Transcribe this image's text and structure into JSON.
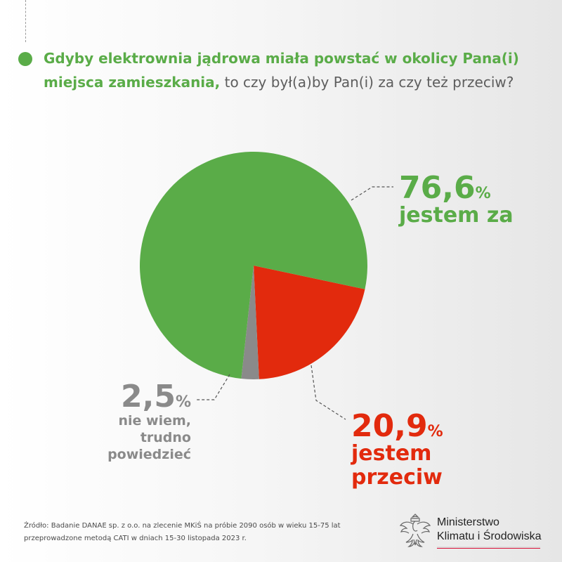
{
  "question": {
    "strong": "Gdyby elektrownia jądrowa miała powstać w okolicy Pana(i) miejsca zamieszkania,",
    "rest": " to czy był(a)by Pan(i) za czy też przeciw?"
  },
  "chart_data": {
    "type": "pie",
    "title": "Gdyby elektrownia jądrowa miała powstać w okolicy Pana(i) miejsca zamieszkania, to czy był(a)by Pan(i) za czy też przeciw?",
    "slices": [
      {
        "label": "jestem przeciw",
        "value": 20.9,
        "display": "20,9",
        "color": "#e22a0d"
      },
      {
        "label": "nie wiem, trudno powiedzieć",
        "value": 2.5,
        "display": "2,5",
        "color": "#8a8a8a"
      },
      {
        "label": "jestem za",
        "value": 76.6,
        "display": "76,6",
        "color": "#5aac48"
      }
    ],
    "unit": "%"
  },
  "labels": {
    "za": {
      "pct": "76,6",
      "sign": "%",
      "caption": "jestem za"
    },
    "przeciw": {
      "pct": "20,9",
      "sign": "%",
      "caption_1": "jestem",
      "caption_2": "przeciw"
    },
    "niewiem": {
      "pct": "2,5",
      "sign": "%",
      "caption_1": "nie wiem,",
      "caption_2": "trudno",
      "caption_3": "powiedzieć"
    }
  },
  "source": {
    "line_1": "Źródło: Badanie DANAE sp. z o.o. na zlecenie MKiŚ na próbie 2090 osób w wieku 15-75 lat",
    "line_2": "przeprowadzone metodą CATI w dniach 15-30 listopada 2023 r."
  },
  "ministry": {
    "line_1": "Ministerstwo",
    "line_2": "Klimatu i Środowiska",
    "icon": "eagle-emblem-icon"
  }
}
